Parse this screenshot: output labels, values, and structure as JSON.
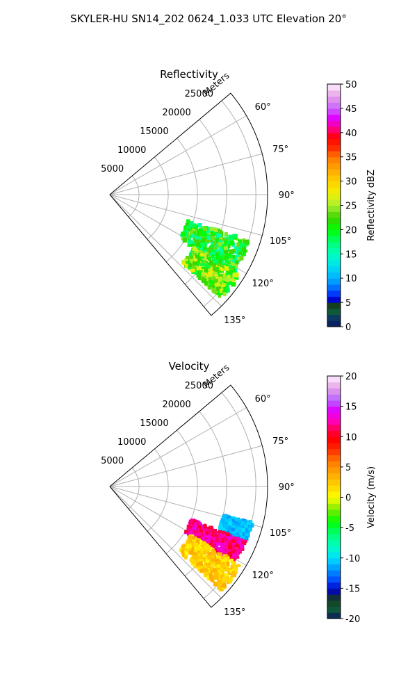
{
  "figure": {
    "suptitle": "SKYLER-HU  SN14_202  0624_1.033 UTC Elevation 20°"
  },
  "chart_data": [
    {
      "type": "polar-sector",
      "title": "Reflectivity",
      "radial_label": "Meters",
      "theta_range_deg": [
        50,
        140
      ],
      "theta_zero": "north",
      "theta_direction": "clockwise",
      "r_max": 27000,
      "r_ticks": [
        5000,
        10000,
        15000,
        20000,
        25000
      ],
      "theta_ticks": [
        "60°",
        "75°",
        "90°",
        "105°",
        "120°",
        "135°"
      ],
      "grid": true,
      "colorbar": {
        "label": "Reflectivity dBZ",
        "min": 0,
        "max": 50,
        "ticks": [
          0,
          5,
          10,
          15,
          20,
          25,
          30,
          35,
          40,
          45,
          50
        ]
      },
      "echo_regions": [
        {
          "theta_deg": [
            108,
            122
          ],
          "r_m": [
            14000,
            25000
          ],
          "value_range": [
            15,
            25
          ]
        },
        {
          "theta_deg": [
            122,
            133
          ],
          "r_m": [
            17000,
            26000
          ],
          "value_range": [
            18,
            28
          ]
        }
      ]
    },
    {
      "type": "polar-sector",
      "title": "Velocity",
      "radial_label": "Meters",
      "theta_range_deg": [
        50,
        140
      ],
      "theta_zero": "north",
      "theta_direction": "clockwise",
      "r_max": 27000,
      "r_ticks": [
        5000,
        10000,
        15000,
        20000,
        25000
      ],
      "theta_ticks": [
        "60°",
        "75°",
        "90°",
        "105°",
        "120°",
        "135°"
      ],
      "grid": true,
      "colorbar": {
        "label": "Velocity (m/s)",
        "min": -20,
        "max": 20,
        "ticks": [
          -20,
          -15,
          -10,
          -5,
          0,
          5,
          10,
          15,
          20
        ]
      },
      "echo_regions": [
        {
          "theta_deg": [
            104,
            112
          ],
          "r_m": [
            20000,
            25000
          ],
          "value_range": [
            -12,
            -10
          ]
        },
        {
          "theta_deg": [
            112,
            121
          ],
          "r_m": [
            15000,
            25000
          ],
          "value_range": [
            10,
            14
          ]
        },
        {
          "theta_deg": [
            121,
            133
          ],
          "r_m": [
            16000,
            26000
          ],
          "value_range": [
            0,
            4
          ]
        }
      ]
    }
  ]
}
